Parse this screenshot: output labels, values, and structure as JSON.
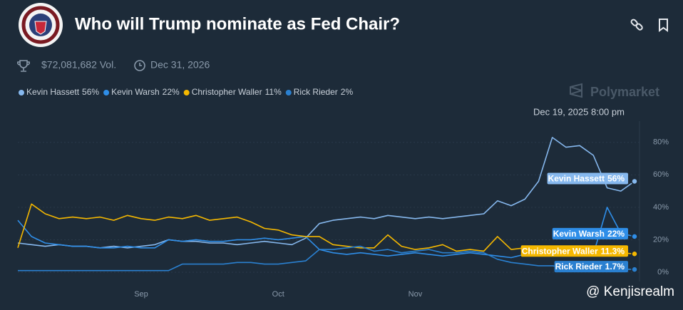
{
  "chart_data": {
    "type": "line",
    "title": "Who will Trump nominate as Fed Chair?",
    "volume": "$72,081,682 Vol.",
    "end_date": "Dec 31, 2026",
    "brand": "Polymarket",
    "hover_label": "Dec 19, 2025 8:00 pm",
    "watermark": "@ Kenjisrealm",
    "categories": [
      null,
      null,
      null,
      null,
      null,
      null,
      null,
      null,
      null,
      "Sep",
      null,
      null,
      null,
      null,
      null,
      null,
      null,
      null,
      null,
      "Oct",
      null,
      null,
      null,
      null,
      null,
      null,
      null,
      null,
      null,
      "Nov",
      null,
      null,
      null,
      null,
      null,
      null,
      null,
      null,
      null,
      null,
      null,
      null,
      null,
      null,
      null,
      null
    ],
    "ylim": [
      0,
      90
    ],
    "yticks": [
      {
        "value": 0,
        "label": "0%"
      },
      {
        "value": 20,
        "label": "20%"
      },
      {
        "value": 40,
        "label": "40%"
      },
      {
        "value": 60,
        "label": "60%"
      },
      {
        "value": 80,
        "label": "80%"
      }
    ],
    "grid": true,
    "series": [
      {
        "name": "Kevin Hassett",
        "color": "#86b8ee",
        "legend_label": "56%",
        "end_label": "56%",
        "values": [
          18,
          17,
          16,
          17,
          16,
          16,
          15,
          16,
          15,
          16,
          17,
          20,
          19,
          19,
          18,
          18,
          17,
          18,
          19,
          18,
          17,
          21,
          30,
          32,
          33,
          34,
          33,
          35,
          34,
          33,
          34,
          33,
          34,
          35,
          36,
          44,
          41,
          45,
          56,
          83,
          77,
          78,
          72,
          52,
          50,
          56
        ]
      },
      {
        "name": "Kevin Warsh",
        "color": "#2f8ee8",
        "legend_label": "22%",
        "end_label": "22%",
        "values": [
          32,
          22,
          18,
          17,
          16,
          16,
          15,
          15,
          16,
          15,
          15,
          20,
          19,
          20,
          19,
          19,
          20,
          20,
          21,
          20,
          21,
          22,
          14,
          12,
          11,
          12,
          11,
          10,
          11,
          12,
          11,
          10,
          11,
          12,
          11,
          10,
          9,
          11,
          12,
          10,
          13,
          12,
          11,
          40,
          24,
          22
        ]
      },
      {
        "name": "Christopher Waller",
        "color": "#f5b800",
        "legend_label": "11%",
        "end_label": "11.3%",
        "values": [
          15,
          42,
          36,
          33,
          34,
          33,
          34,
          32,
          35,
          33,
          32,
          34,
          33,
          35,
          32,
          33,
          34,
          31,
          27,
          26,
          23,
          22,
          22,
          17,
          16,
          15,
          15,
          23,
          16,
          14,
          15,
          17,
          13,
          14,
          13,
          22,
          14,
          15,
          13,
          14,
          13,
          12,
          13,
          12,
          12,
          11.3
        ]
      },
      {
        "name": "Rick Rieder",
        "color": "#2a80d0",
        "legend_label": "2%",
        "end_label": "1.7%",
        "values": [
          1,
          1,
          1,
          1,
          1,
          1,
          1,
          1,
          1,
          1,
          1,
          1,
          5,
          5,
          5,
          5,
          6,
          6,
          5,
          5,
          6,
          7,
          14,
          14,
          15,
          16,
          13,
          14,
          12,
          13,
          14,
          12,
          12,
          13,
          12,
          8,
          6,
          5,
          4,
          4,
          3,
          3,
          3,
          2,
          2,
          1.7
        ]
      }
    ]
  }
}
